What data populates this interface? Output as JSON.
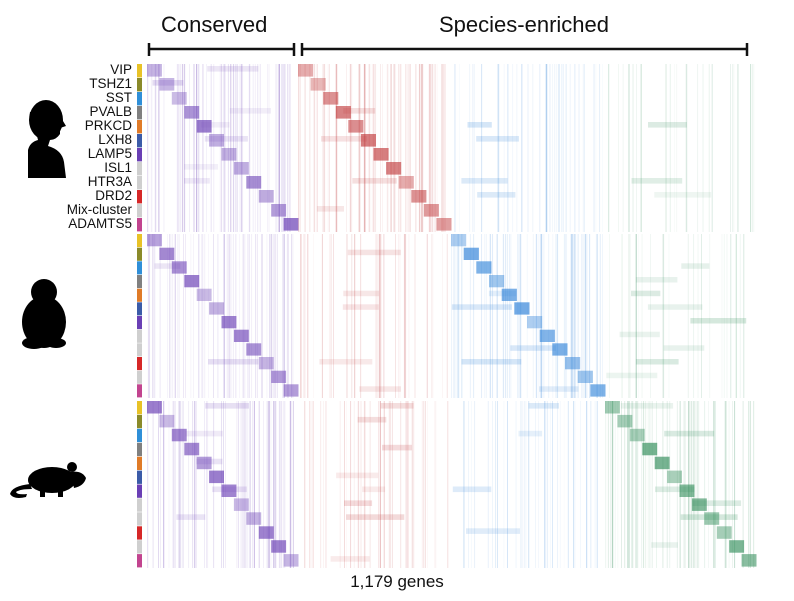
{
  "header": {
    "groups": [
      {
        "label": "Conserved"
      },
      {
        "label": "Species-enriched"
      }
    ]
  },
  "row_labels": [
    "VIP",
    "TSHZ1",
    "SST",
    "PVALB",
    "PRKCD",
    "LXH8",
    "LAMP5",
    "ISL1",
    "HTR3A",
    "DRD2",
    "Mix-cluster",
    "ADAMTS5"
  ],
  "footer": {
    "gene_count": "1,179 genes"
  },
  "species": [
    {
      "icon": "human-icon"
    },
    {
      "icon": "monkey-icon"
    },
    {
      "icon": "mouse-icon"
    }
  ],
  "colors": {
    "conserved": "#6a3fb5",
    "human_enriched": "#c0393b",
    "monkey_enriched": "#2f82d8",
    "mouse_enriched": "#2e8b57",
    "cluster_bar": [
      "#e8c227",
      "#8a8a2a",
      "#2f8fd8",
      "#808080",
      "#e07b28",
      "#3b5ba8",
      "#6a3fb5",
      "#cfcfcf",
      "#cfcfcf",
      "#d62728",
      "#cfcfcf",
      "#c2448f"
    ]
  }
}
